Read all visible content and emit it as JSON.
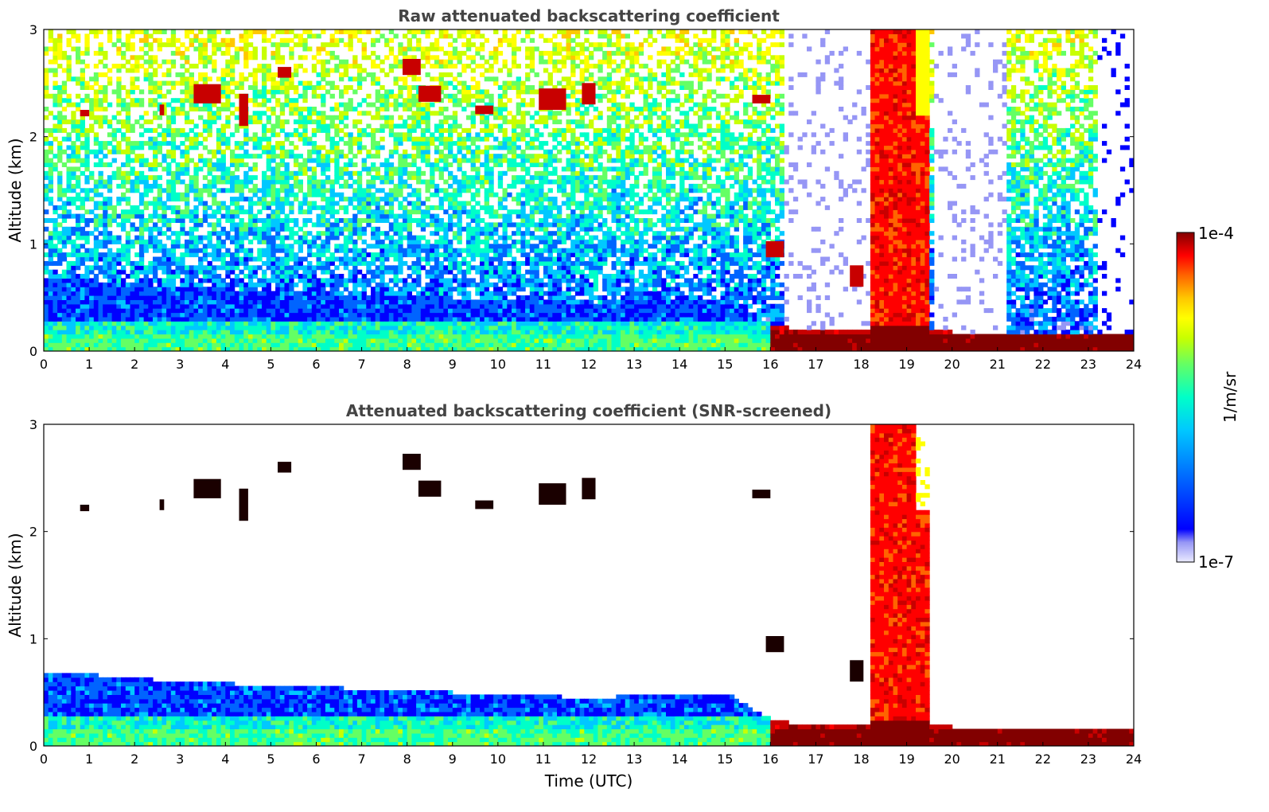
{
  "chart_data": [
    {
      "type": "heatmap",
      "title": "Raw attenuated backscattering coefficient",
      "xlabel": "",
      "ylabel": "Altitude (km)",
      "xlim": [
        0,
        24
      ],
      "ylim": [
        0,
        3
      ],
      "xticks": [
        "0",
        "1",
        "2",
        "3",
        "4",
        "5",
        "6",
        "7",
        "8",
        "9",
        "10",
        "11",
        "12",
        "13",
        "14",
        "15",
        "16",
        "17",
        "18",
        "19",
        "20",
        "21",
        "22",
        "23",
        "24"
      ],
      "yticks": [
        "0",
        "1",
        "2",
        "3"
      ],
      "screened": false
    },
    {
      "type": "heatmap",
      "title": "Attenuated backscattering coefficient (SNR-screened)",
      "xlabel": "Time (UTC)",
      "ylabel": "Altitude (km)",
      "xlim": [
        0,
        24
      ],
      "ylim": [
        0,
        3
      ],
      "xticks": [
        "0",
        "1",
        "2",
        "3",
        "4",
        "5",
        "6",
        "7",
        "8",
        "9",
        "10",
        "11",
        "12",
        "13",
        "14",
        "15",
        "16",
        "17",
        "18",
        "19",
        "20",
        "21",
        "22",
        "23",
        "24"
      ],
      "yticks": [
        "0",
        "1",
        "2",
        "3"
      ],
      "screened": true
    }
  ],
  "colorbar": {
    "label": "1/m/sr",
    "max_label": "1e-4",
    "min_label": "1e-7",
    "scale": "log",
    "colors": [
      "#ebebff",
      "#c8c8fa",
      "#9696f5",
      "#0000ff",
      "#0064ff",
      "#00c8ff",
      "#00ffc8",
      "#64ff64",
      "#c8ff00",
      "#ffff00",
      "#ffc800",
      "#ff6400",
      "#ff0000",
      "#c80000",
      "#820000"
    ]
  },
  "features": {
    "boundary_layer_top_km": [
      [
        0,
        0.7
      ],
      [
        3,
        0.6
      ],
      [
        6,
        0.55
      ],
      [
        9,
        0.5
      ],
      [
        12,
        0.45
      ],
      [
        15,
        0.5
      ],
      [
        16,
        0.25
      ],
      [
        17,
        0.18
      ],
      [
        18,
        0.2
      ],
      [
        20,
        0.18
      ],
      [
        22,
        0.12
      ],
      [
        24,
        0.15
      ]
    ],
    "high_clouds": [
      {
        "t": 0.9,
        "z": 2.22,
        "w": 0.2,
        "h": 0.06
      },
      {
        "t": 2.6,
        "z": 2.25,
        "w": 0.1,
        "h": 0.1
      },
      {
        "t": 3.6,
        "z": 2.4,
        "w": 0.6,
        "h": 0.18
      },
      {
        "t": 4.4,
        "z": 2.25,
        "w": 0.2,
        "h": 0.3
      },
      {
        "t": 5.3,
        "z": 2.6,
        "w": 0.3,
        "h": 0.1
      },
      {
        "t": 8.1,
        "z": 2.65,
        "w": 0.4,
        "h": 0.15
      },
      {
        "t": 8.5,
        "z": 2.4,
        "w": 0.5,
        "h": 0.15
      },
      {
        "t": 9.7,
        "z": 2.25,
        "w": 0.4,
        "h": 0.08
      },
      {
        "t": 11.2,
        "z": 2.35,
        "w": 0.6,
        "h": 0.2
      },
      {
        "t": 12.0,
        "z": 2.4,
        "w": 0.3,
        "h": 0.2
      },
      {
        "t": 15.8,
        "z": 2.35,
        "w": 0.4,
        "h": 0.08
      },
      {
        "t": 16.1,
        "z": 0.95,
        "w": 0.4,
        "h": 0.15
      },
      {
        "t": 17.9,
        "z": 0.7,
        "w": 0.3,
        "h": 0.2
      }
    ],
    "deep_cloud_hours": [
      18.2,
      19.5
    ]
  }
}
